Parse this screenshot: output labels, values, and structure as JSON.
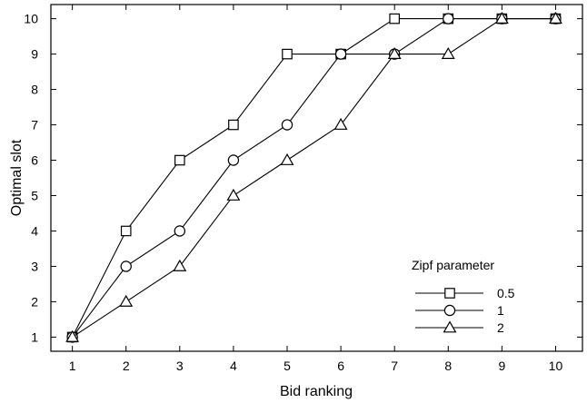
{
  "chart_data": {
    "type": "line",
    "title": "",
    "xlabel": "Bid ranking",
    "ylabel": "Optimal slot",
    "x": [
      1,
      2,
      3,
      4,
      5,
      6,
      7,
      8,
      9,
      10
    ],
    "xlim": [
      0.6,
      10.5
    ],
    "ylim": [
      0.6,
      10.4
    ],
    "xticks": [
      1,
      2,
      3,
      4,
      5,
      6,
      7,
      8,
      9,
      10
    ],
    "yticks": [
      1,
      2,
      3,
      4,
      5,
      6,
      7,
      8,
      9,
      10
    ],
    "grid": false,
    "legend": {
      "title": "Zipf parameter",
      "position": "bottom-right"
    },
    "series": [
      {
        "name": "0.5",
        "marker": "square",
        "values": [
          1,
          4,
          6,
          7,
          9,
          9,
          10,
          10,
          10,
          10
        ]
      },
      {
        "name": "1",
        "marker": "circle",
        "values": [
          1,
          3,
          4,
          6,
          7,
          9,
          9,
          10,
          10,
          10
        ]
      },
      {
        "name": "2",
        "marker": "triangle",
        "values": [
          1,
          2,
          3,
          5,
          6,
          7,
          9,
          9,
          10,
          10
        ]
      }
    ]
  }
}
